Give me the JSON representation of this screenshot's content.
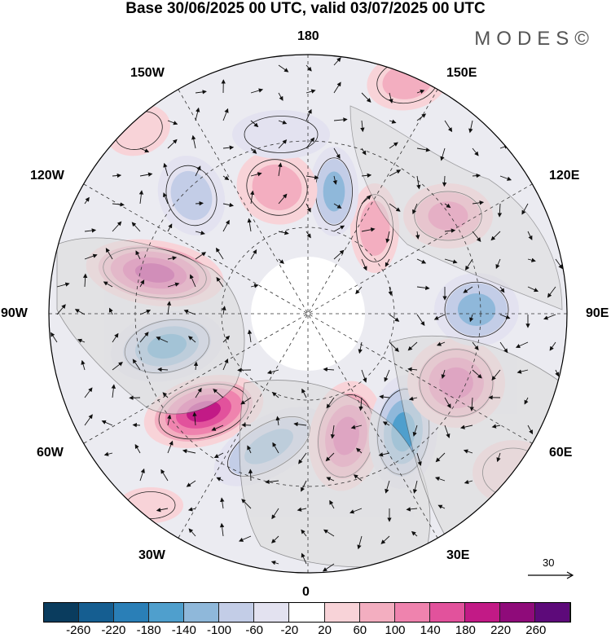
{
  "header": {
    "title": "Base 30/06/2025 00 UTC, valid 03/07/2025 00 UTC",
    "brand": "MODES©"
  },
  "map": {
    "projection": "north polar stereographic",
    "longitude_labels": {
      "top": "180",
      "bottom": "0",
      "left": "90W",
      "right": "90E",
      "upper_left_1": "150W",
      "upper_left_2": "120W",
      "upper_right_1": "150E",
      "upper_right_2": "120E",
      "lower_left_1": "60W",
      "lower_left_2": "30W",
      "lower_right_1": "60E",
      "lower_right_2": "30E"
    },
    "reference_vector_label": "30"
  },
  "colorbar": {
    "colors": [
      "#0a3c5e",
      "#155e91",
      "#2a7fb7",
      "#4f9fcd",
      "#8fb8da",
      "#c3cde7",
      "#e3e2f0",
      "#ffffff",
      "#f8d3d8",
      "#f3aec0",
      "#ef83ae",
      "#e2529c",
      "#c21a86",
      "#8f0b7a",
      "#5d0a7a"
    ],
    "tick_labels": [
      "-260",
      "-220",
      "-180",
      "-140",
      "-100",
      "-60",
      "-20",
      "20",
      "60",
      "100",
      "140",
      "180",
      "220",
      "260"
    ]
  }
}
